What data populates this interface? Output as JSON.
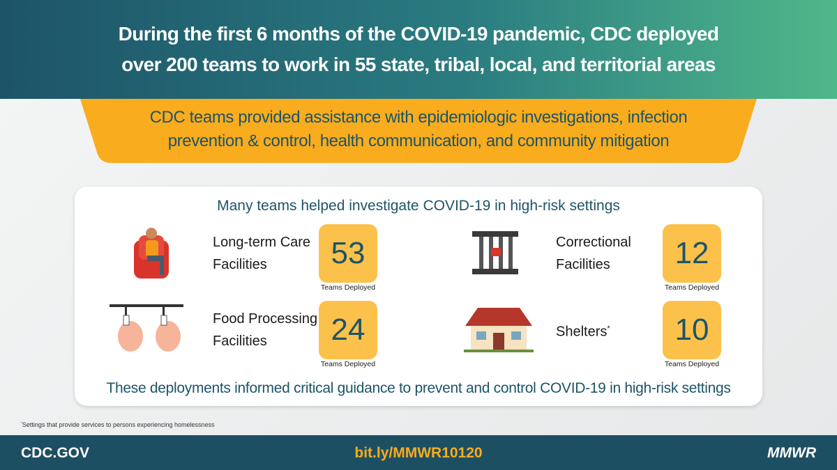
{
  "header": {
    "title_lines": [
      "During the first 6 months of the COVID-19 pandemic, CDC deployed",
      "over 200 teams to work in 55 state, tribal, local, and territorial areas"
    ]
  },
  "banner": {
    "lines": [
      "CDC teams provided assistance with epidemiologic investigations, infection",
      "prevention & control, health communication, and community mitigation"
    ]
  },
  "panel": {
    "heading": "Many teams helped investigate COVID-19 in high-risk settings",
    "settings": [
      {
        "label_lines": [
          "Long-term Care",
          "Facilities"
        ],
        "count": 53,
        "count_label": "Teams Deployed"
      },
      {
        "label_lines": [
          "Correctional",
          "Facilities"
        ],
        "count": 12,
        "count_label": "Teams Deployed"
      },
      {
        "label_lines": [
          "Food Processing",
          "Facilities"
        ],
        "count": 24,
        "count_label": "Teams Deployed"
      },
      {
        "label_lines": [
          "Shelters"
        ],
        "marker": "*",
        "count": 10,
        "count_label": "Teams Deployed"
      }
    ],
    "conclusion": "These deployments informed critical guidance to prevent and control COVID-19 in high-risk settings"
  },
  "footnote": {
    "marker": "*",
    "text": "Settings that provide services to persons experiencing homelessness"
  },
  "footer": {
    "left": "CDC.GOV",
    "center": "bit.ly/MMWR10120",
    "right": "MMWR"
  }
}
